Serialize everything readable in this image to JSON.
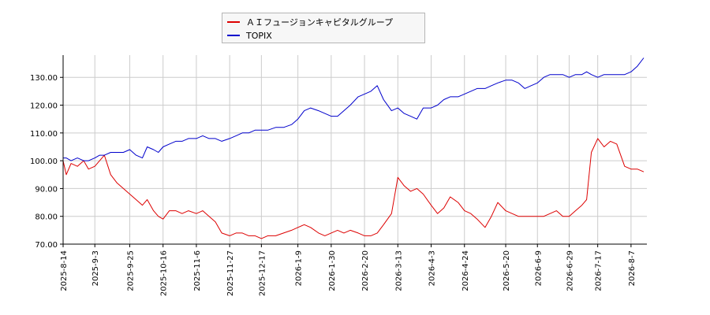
{
  "chart_data": {
    "type": "line",
    "title": "",
    "xlabel": "",
    "ylabel": "",
    "ylim": [
      70,
      138
    ],
    "y_ticks": [
      "70.00",
      "80.00",
      "90.00",
      "100.00",
      "110.00",
      "120.00",
      "130.00"
    ],
    "x_ticks": [
      "2025-8-14",
      "2025-9-3",
      "2025-9-25",
      "2025-10-16",
      "2025-11-6",
      "2025-11-27",
      "2025-12-17",
      "2026-1-9",
      "2026-1-30",
      "2026-2-20",
      "2026-3-13",
      "2026-4-3",
      "2026-4-24",
      "2026-5-20",
      "2026-6-9",
      "2026-6-29",
      "2026-7-17",
      "2026-8-7"
    ],
    "x_range": [
      "2025-8-14",
      "2026-8-17"
    ],
    "grid": true,
    "legend_position": "top-center",
    "colors": {
      "series1": "#dd0000",
      "series2": "#0000cc",
      "grid": "#cccccc",
      "axis": "#000000"
    },
    "series": [
      {
        "name": "ＡＩフュージョンキャピタルグループ",
        "x": [
          "2025-8-14",
          "2025-8-16",
          "2025-8-19",
          "2025-8-23",
          "2025-8-27",
          "2025-8-30",
          "2025-9-3",
          "2025-9-6",
          "2025-9-9",
          "2025-9-13",
          "2025-9-17",
          "2025-9-21",
          "2025-9-25",
          "2025-9-29",
          "2025-10-3",
          "2025-10-6",
          "2025-10-10",
          "2025-10-13",
          "2025-10-16",
          "2025-10-20",
          "2025-10-24",
          "2025-10-28",
          "2025-11-1",
          "2025-11-6",
          "2025-11-10",
          "2025-11-14",
          "2025-11-18",
          "2025-11-22",
          "2025-11-27",
          "2025-12-1",
          "2025-12-5",
          "2025-12-9",
          "2025-12-13",
          "2025-12-17",
          "2025-12-21",
          "2025-12-26",
          "2025-12-31",
          "2026-1-5",
          "2026-1-9",
          "2026-1-13",
          "2026-1-17",
          "2026-1-22",
          "2026-1-26",
          "2026-1-30",
          "2026-2-3",
          "2026-2-7",
          "2026-2-11",
          "2026-2-16",
          "2026-2-20",
          "2026-2-24",
          "2026-2-28",
          "2026-3-4",
          "2026-3-9",
          "2026-3-13",
          "2026-3-17",
          "2026-3-21",
          "2026-3-25",
          "2026-3-29",
          "2026-4-3",
          "2026-4-7",
          "2026-4-11",
          "2026-4-15",
          "2026-4-20",
          "2026-4-24",
          "2026-4-28",
          "2026-5-2",
          "2026-5-7",
          "2026-5-11",
          "2026-5-15",
          "2026-5-20",
          "2026-5-24",
          "2026-5-28",
          "2026-6-1",
          "2026-6-5",
          "2026-6-9",
          "2026-6-13",
          "2026-6-17",
          "2026-6-21",
          "2026-6-25",
          "2026-6-29",
          "2026-7-3",
          "2026-7-7",
          "2026-7-10",
          "2026-7-13",
          "2026-7-17",
          "2026-7-21",
          "2026-7-25",
          "2026-7-29",
          "2026-8-3",
          "2026-8-7",
          "2026-8-11",
          "2026-8-15"
        ],
        "values": [
          100,
          95,
          99,
          98,
          100,
          97,
          98,
          100,
          102,
          95,
          92,
          90,
          88,
          86,
          84,
          86,
          82,
          80,
          79,
          82,
          82,
          81,
          82,
          81,
          82,
          80,
          78,
          74,
          73,
          74,
          74,
          73,
          73,
          72,
          73,
          73,
          74,
          75,
          76,
          77,
          76,
          74,
          73,
          74,
          75,
          74,
          75,
          74,
          73,
          73,
          74,
          77,
          81,
          94,
          91,
          89,
          90,
          88,
          84,
          81,
          83,
          87,
          85,
          82,
          81,
          79,
          76,
          80,
          85,
          82,
          81,
          80,
          80,
          80,
          80,
          80,
          81,
          82,
          80,
          80,
          82,
          84,
          86,
          103,
          108,
          105,
          107,
          106,
          98,
          97,
          97,
          96
        ],
        "color": "#dd0000"
      },
      {
        "name": "TOPIX",
        "x": [
          "2025-8-14",
          "2025-8-16",
          "2025-8-19",
          "2025-8-23",
          "2025-8-27",
          "2025-8-30",
          "2025-9-3",
          "2025-9-6",
          "2025-9-9",
          "2025-9-13",
          "2025-9-17",
          "2025-9-21",
          "2025-9-25",
          "2025-9-29",
          "2025-10-3",
          "2025-10-6",
          "2025-10-10",
          "2025-10-13",
          "2025-10-16",
          "2025-10-20",
          "2025-10-24",
          "2025-10-28",
          "2025-11-1",
          "2025-11-6",
          "2025-11-10",
          "2025-11-14",
          "2025-11-18",
          "2025-11-22",
          "2025-11-27",
          "2025-12-1",
          "2025-12-5",
          "2025-12-9",
          "2025-12-13",
          "2025-12-17",
          "2025-12-21",
          "2025-12-26",
          "2025-12-31",
          "2026-1-5",
          "2026-1-9",
          "2026-1-13",
          "2026-1-17",
          "2026-1-22",
          "2026-1-26",
          "2026-1-30",
          "2026-2-3",
          "2026-2-7",
          "2026-2-11",
          "2026-2-16",
          "2026-2-20",
          "2026-2-24",
          "2026-2-28",
          "2026-3-4",
          "2026-3-9",
          "2026-3-13",
          "2026-3-17",
          "2026-3-21",
          "2026-3-25",
          "2026-3-29",
          "2026-4-3",
          "2026-4-7",
          "2026-4-11",
          "2026-4-15",
          "2026-4-20",
          "2026-4-24",
          "2026-4-28",
          "2026-5-2",
          "2026-5-7",
          "2026-5-11",
          "2026-5-15",
          "2026-5-20",
          "2026-5-24",
          "2026-5-28",
          "2026-6-1",
          "2026-6-5",
          "2026-6-9",
          "2026-6-13",
          "2026-6-17",
          "2026-6-21",
          "2026-6-25",
          "2026-6-29",
          "2026-7-3",
          "2026-7-7",
          "2026-7-10",
          "2026-7-13",
          "2026-7-17",
          "2026-7-21",
          "2026-7-25",
          "2026-7-29",
          "2026-8-3",
          "2026-8-7",
          "2026-8-11",
          "2026-8-15"
        ],
        "values": [
          101,
          101,
          100,
          101,
          100,
          100,
          101,
          102,
          102,
          103,
          103,
          103,
          104,
          102,
          101,
          105,
          104,
          103,
          105,
          106,
          107,
          107,
          108,
          108,
          109,
          108,
          108,
          107,
          108,
          109,
          110,
          110,
          111,
          111,
          111,
          112,
          112,
          113,
          115,
          118,
          119,
          118,
          117,
          116,
          116,
          118,
          120,
          123,
          124,
          125,
          127,
          122,
          118,
          119,
          117,
          116,
          115,
          119,
          119,
          120,
          122,
          123,
          123,
          124,
          125,
          126,
          126,
          127,
          128,
          129,
          129,
          128,
          126,
          127,
          128,
          130,
          131,
          131,
          131,
          130,
          131,
          131,
          132,
          131,
          130,
          131,
          131,
          131,
          131,
          132,
          134,
          137
        ],
        "color": "#0000cc"
      }
    ]
  }
}
